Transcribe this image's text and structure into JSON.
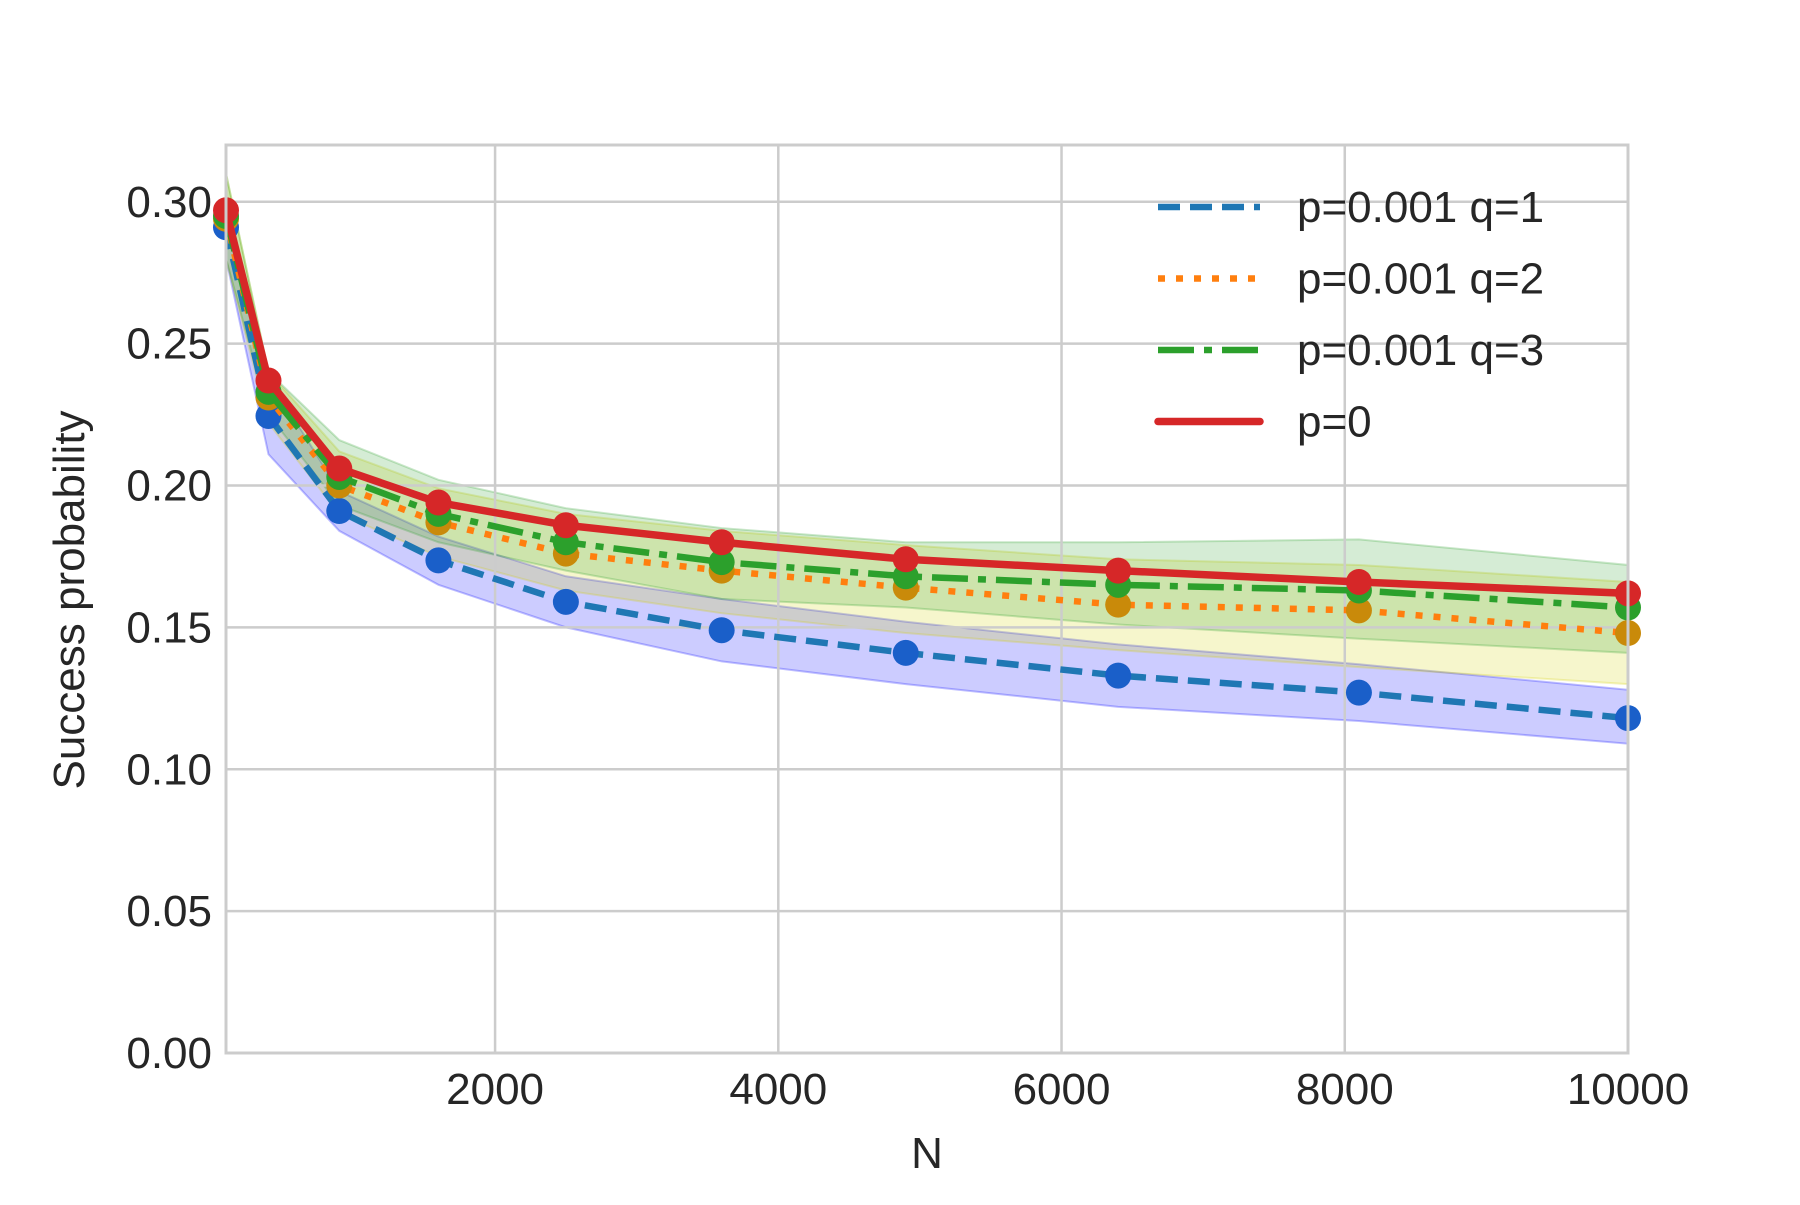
{
  "chart_data": {
    "type": "line",
    "title": "",
    "xlabel": "N",
    "ylabel": "Success probability",
    "xlim": [
      100,
      10000
    ],
    "ylim": [
      0,
      0.32
    ],
    "xticks": [
      2000,
      4000,
      6000,
      8000,
      10000
    ],
    "xtick_labels": [
      "2000",
      "4000",
      "6000",
      "8000",
      "10000"
    ],
    "yticks": [
      0,
      0.05,
      0.1,
      0.15,
      0.2,
      0.25,
      0.3
    ],
    "ytick_labels": [
      "0.00",
      "0.05",
      "0.10",
      "0.15",
      "0.20",
      "0.25",
      "0.30"
    ],
    "grid": true,
    "legend_position": "top-right",
    "x": [
      100,
      400,
      900,
      1600,
      2500,
      3600,
      4900,
      6400,
      8100,
      10000
    ],
    "series": [
      {
        "name": "p=0.001 q=1",
        "line_style": "dashed",
        "color": "#1f77b4",
        "marker_color": "#1a5fc9",
        "band_color": "#0000ff",
        "values": [
          0.291,
          0.2245,
          0.191,
          0.1736,
          0.159,
          0.149,
          0.141,
          0.133,
          0.127,
          0.118
        ],
        "lower": [
          0.28,
          0.211,
          0.184,
          0.165,
          0.15,
          0.138,
          0.13,
          0.122,
          0.117,
          0.109
        ],
        "upper": [
          0.3,
          0.238,
          0.198,
          0.182,
          0.168,
          0.16,
          0.152,
          0.144,
          0.137,
          0.128
        ]
      },
      {
        "name": "p=0.001 q=2",
        "line_style": "dotted",
        "color": "#ff7f0e",
        "marker_color": "#c98a0a",
        "band_color": "#d4d000",
        "values": [
          0.294,
          0.231,
          0.2,
          0.187,
          0.176,
          0.17,
          0.164,
          0.158,
          0.156,
          0.148
        ],
        "lower": [
          0.28,
          0.222,
          0.19,
          0.175,
          0.163,
          0.155,
          0.148,
          0.142,
          0.136,
          0.13
        ],
        "upper": [
          0.31,
          0.24,
          0.212,
          0.199,
          0.19,
          0.184,
          0.179,
          0.174,
          0.172,
          0.166
        ]
      },
      {
        "name": "p=0.001 q=3",
        "line_style": "dashdot",
        "color": "#2ca02c",
        "marker_color": "#2ca02c",
        "band_color": "#2ca02c",
        "values": [
          0.295,
          0.233,
          0.203,
          0.19,
          0.18,
          0.173,
          0.168,
          0.165,
          0.163,
          0.157
        ],
        "lower": [
          0.28,
          0.225,
          0.193,
          0.18,
          0.17,
          0.16,
          0.157,
          0.151,
          0.146,
          0.141
        ],
        "upper": [
          0.31,
          0.24,
          0.216,
          0.202,
          0.192,
          0.185,
          0.18,
          0.18,
          0.181,
          0.172
        ]
      },
      {
        "name": "p=0",
        "line_style": "solid",
        "color": "#d62728",
        "marker_color": "#d62728",
        "values": [
          0.297,
          0.237,
          0.206,
          0.194,
          0.186,
          0.18,
          0.174,
          0.17,
          0.166,
          0.162
        ]
      }
    ]
  }
}
